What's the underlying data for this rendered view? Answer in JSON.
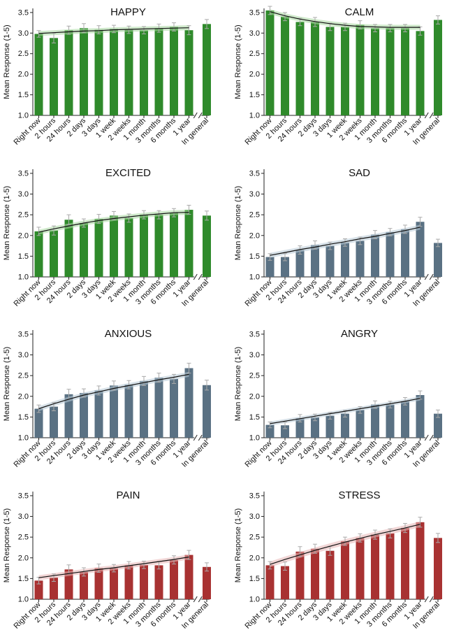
{
  "chart_data": [
    {
      "type": "bar",
      "title": "HAPPY",
      "ylabel": "Mean Response (1-5)",
      "ylim": [
        1.0,
        3.6
      ],
      "yticks": [
        "1.0",
        "1.5",
        "2.0",
        "2.5",
        "3.0",
        "3.5"
      ],
      "categories": [
        "Right now",
        "2 hours",
        "24 hours",
        "2 days",
        "3 days",
        "1 week",
        "2 weeks",
        "1 month",
        "3 months",
        "6 months",
        "1 year",
        "In general"
      ],
      "values": [
        2.98,
        2.88,
        3.07,
        3.12,
        3.08,
        3.1,
        3.08,
        3.07,
        3.12,
        3.15,
        3.07,
        3.22
      ],
      "errors": [
        0.08,
        0.12,
        0.1,
        0.11,
        0.1,
        0.09,
        0.09,
        0.09,
        0.1,
        0.1,
        0.11,
        0.11
      ],
      "fit": [
        2.99,
        3.01,
        3.03,
        3.05,
        3.06,
        3.08,
        3.09,
        3.1,
        3.11,
        3.12,
        3.13
      ],
      "fit_band": 0.06,
      "color": "#2f8a2b",
      "band_color": "#a8d7a0"
    },
    {
      "type": "bar",
      "title": "CALM",
      "ylabel": "Mean Response (1-5)",
      "ylim": [
        1.0,
        3.6
      ],
      "yticks": [
        "1.0",
        "1.5",
        "2.0",
        "2.5",
        "3.0",
        "3.5"
      ],
      "categories": [
        "Right now",
        "2 hours",
        "24 hours",
        "2 days",
        "3 days",
        "1 week",
        "2 weeks",
        "1 month",
        "3 months",
        "6 months",
        "1 year",
        "In general"
      ],
      "values": [
        3.55,
        3.4,
        3.27,
        3.27,
        3.15,
        3.15,
        3.2,
        3.12,
        3.12,
        3.12,
        3.05,
        3.32
      ],
      "errors": [
        0.1,
        0.1,
        0.09,
        0.11,
        0.09,
        0.09,
        0.1,
        0.09,
        0.09,
        0.09,
        0.1,
        0.1
      ],
      "fit": [
        3.52,
        3.42,
        3.34,
        3.28,
        3.23,
        3.19,
        3.16,
        3.15,
        3.14,
        3.14,
        3.14
      ],
      "fit_band": 0.06,
      "color": "#2f8a2b",
      "band_color": "#a8d7a0"
    },
    {
      "type": "bar",
      "title": "EXCITED",
      "ylabel": "Mean Response (1-5)",
      "ylim": [
        1.0,
        3.6
      ],
      "yticks": [
        "1.0",
        "1.5",
        "2.0",
        "2.5",
        "3.0",
        "3.5"
      ],
      "categories": [
        "Right now",
        "2 hours",
        "24 hours",
        "2 days",
        "3 days",
        "1 week",
        "2 weeks",
        "1 month",
        "3 months",
        "6 months",
        "1 year",
        "In general"
      ],
      "values": [
        2.1,
        2.12,
        2.38,
        2.3,
        2.4,
        2.48,
        2.42,
        2.5,
        2.5,
        2.55,
        2.62,
        2.48
      ],
      "errors": [
        0.1,
        0.11,
        0.12,
        0.1,
        0.11,
        0.1,
        0.1,
        0.1,
        0.1,
        0.1,
        0.11,
        0.11
      ],
      "fit": [
        2.08,
        2.16,
        2.23,
        2.3,
        2.36,
        2.41,
        2.45,
        2.49,
        2.52,
        2.55,
        2.56
      ],
      "fit_band": 0.06,
      "color": "#2f8a2b",
      "band_color": "#a8d7a0"
    },
    {
      "type": "bar",
      "title": "SAD",
      "ylabel": "Mean Response (1-5)",
      "ylim": [
        1.0,
        3.6
      ],
      "yticks": [
        "1.0",
        "1.5",
        "2.0",
        "2.5",
        "3.0",
        "3.5"
      ],
      "categories": [
        "Right now",
        "2 hours",
        "24 hours",
        "2 days",
        "3 days",
        "1 week",
        "2 weeks",
        "1 month",
        "3 months",
        "6 months",
        "1 year",
        "In general"
      ],
      "values": [
        1.48,
        1.48,
        1.65,
        1.77,
        1.75,
        1.83,
        1.87,
        2.02,
        2.08,
        2.15,
        2.33,
        1.82
      ],
      "errors": [
        0.08,
        0.09,
        0.1,
        0.1,
        0.09,
        0.09,
        0.09,
        0.1,
        0.09,
        0.1,
        0.11,
        0.09
      ],
      "fit": [
        1.52,
        1.59,
        1.66,
        1.72,
        1.79,
        1.85,
        1.92,
        1.98,
        2.05,
        2.12,
        2.2
      ],
      "fit_band": 0.06,
      "color": "#5a7183",
      "band_color": "#b7c8d6"
    },
    {
      "type": "bar",
      "title": "ANXIOUS",
      "ylabel": "Mean Response (1-5)",
      "ylim": [
        1.0,
        3.6
      ],
      "yticks": [
        "1.0",
        "1.5",
        "2.0",
        "2.5",
        "3.0",
        "3.5"
      ],
      "categories": [
        "Right now",
        "2 hours",
        "24 hours",
        "2 days",
        "3 days",
        "1 week",
        "2 weeks",
        "1 month",
        "3 months",
        "6 months",
        "1 year",
        "In general"
      ],
      "values": [
        1.7,
        1.75,
        2.05,
        2.08,
        2.14,
        2.26,
        2.28,
        2.37,
        2.45,
        2.42,
        2.68,
        2.27
      ],
      "errors": [
        0.09,
        0.1,
        0.12,
        0.1,
        0.11,
        0.11,
        0.1,
        0.11,
        0.11,
        0.11,
        0.12,
        0.12
      ],
      "fit": [
        1.7,
        1.82,
        1.93,
        2.03,
        2.11,
        2.19,
        2.26,
        2.33,
        2.4,
        2.46,
        2.53
      ],
      "fit_band": 0.06,
      "color": "#5a7183",
      "band_color": "#b7c8d6"
    },
    {
      "type": "bar",
      "title": "ANGRY",
      "ylabel": "Mean Response (1-5)",
      "ylim": [
        1.0,
        3.6
      ],
      "yticks": [
        "1.0",
        "1.5",
        "2.0",
        "2.5",
        "3.0",
        "3.5"
      ],
      "categories": [
        "Right now",
        "2 hours",
        "24 hours",
        "2 days",
        "3 days",
        "1 week",
        "2 weeks",
        "1 month",
        "3 months",
        "6 months",
        "1 year",
        "In general"
      ],
      "values": [
        1.31,
        1.3,
        1.47,
        1.49,
        1.53,
        1.58,
        1.67,
        1.8,
        1.8,
        1.88,
        2.03,
        1.58
      ],
      "errors": [
        0.07,
        0.08,
        0.09,
        0.08,
        0.08,
        0.08,
        0.08,
        0.09,
        0.08,
        0.09,
        0.1,
        0.09
      ],
      "fit": [
        1.34,
        1.4,
        1.46,
        1.52,
        1.58,
        1.64,
        1.7,
        1.76,
        1.82,
        1.88,
        1.95
      ],
      "fit_band": 0.05,
      "color": "#5a7183",
      "band_color": "#b7c8d6"
    },
    {
      "type": "bar",
      "title": "PAIN",
      "ylabel": "Mean Response (1-5)",
      "ylim": [
        1.0,
        3.6
      ],
      "yticks": [
        "1.0",
        "1.5",
        "2.0",
        "2.5",
        "3.0",
        "3.5"
      ],
      "categories": [
        "Right now",
        "2 hours",
        "24 hours",
        "2 days",
        "3 days",
        "1 week",
        "2 weeks",
        "1 month",
        "3 months",
        "6 months",
        "1 year",
        "In general"
      ],
      "values": [
        1.45,
        1.52,
        1.72,
        1.66,
        1.75,
        1.75,
        1.82,
        1.83,
        1.82,
        1.95,
        2.07,
        1.78
      ],
      "errors": [
        0.08,
        0.09,
        0.11,
        0.1,
        0.1,
        0.09,
        0.09,
        0.09,
        0.09,
        0.1,
        0.11,
        0.1
      ],
      "fit": [
        1.52,
        1.57,
        1.62,
        1.67,
        1.72,
        1.76,
        1.81,
        1.86,
        1.91,
        1.96,
        2.02
      ],
      "fit_band": 0.06,
      "color": "#a83232",
      "band_color": "#e5b5b5"
    },
    {
      "type": "bar",
      "title": "STRESS",
      "ylabel": "Mean Response (1-5)",
      "ylim": [
        1.0,
        3.6
      ],
      "yticks": [
        "1.0",
        "1.5",
        "2.0",
        "2.5",
        "3.0",
        "3.5"
      ],
      "categories": [
        "Right now",
        "2 hours",
        "24 hours",
        "2 days",
        "3 days",
        "1 week",
        "2 weeks",
        "1 month",
        "3 months",
        "6 months",
        "1 year",
        "In general"
      ],
      "values": [
        1.82,
        1.8,
        2.15,
        2.22,
        2.17,
        2.4,
        2.48,
        2.56,
        2.59,
        2.72,
        2.86,
        2.48
      ],
      "errors": [
        0.09,
        0.1,
        0.12,
        0.11,
        0.11,
        0.1,
        0.1,
        0.11,
        0.11,
        0.11,
        0.12,
        0.11
      ],
      "fit": [
        1.84,
        1.96,
        2.07,
        2.18,
        2.28,
        2.38,
        2.47,
        2.56,
        2.64,
        2.72,
        2.81
      ],
      "fit_band": 0.07,
      "color": "#a83232",
      "band_color": "#e5b5b5"
    }
  ]
}
